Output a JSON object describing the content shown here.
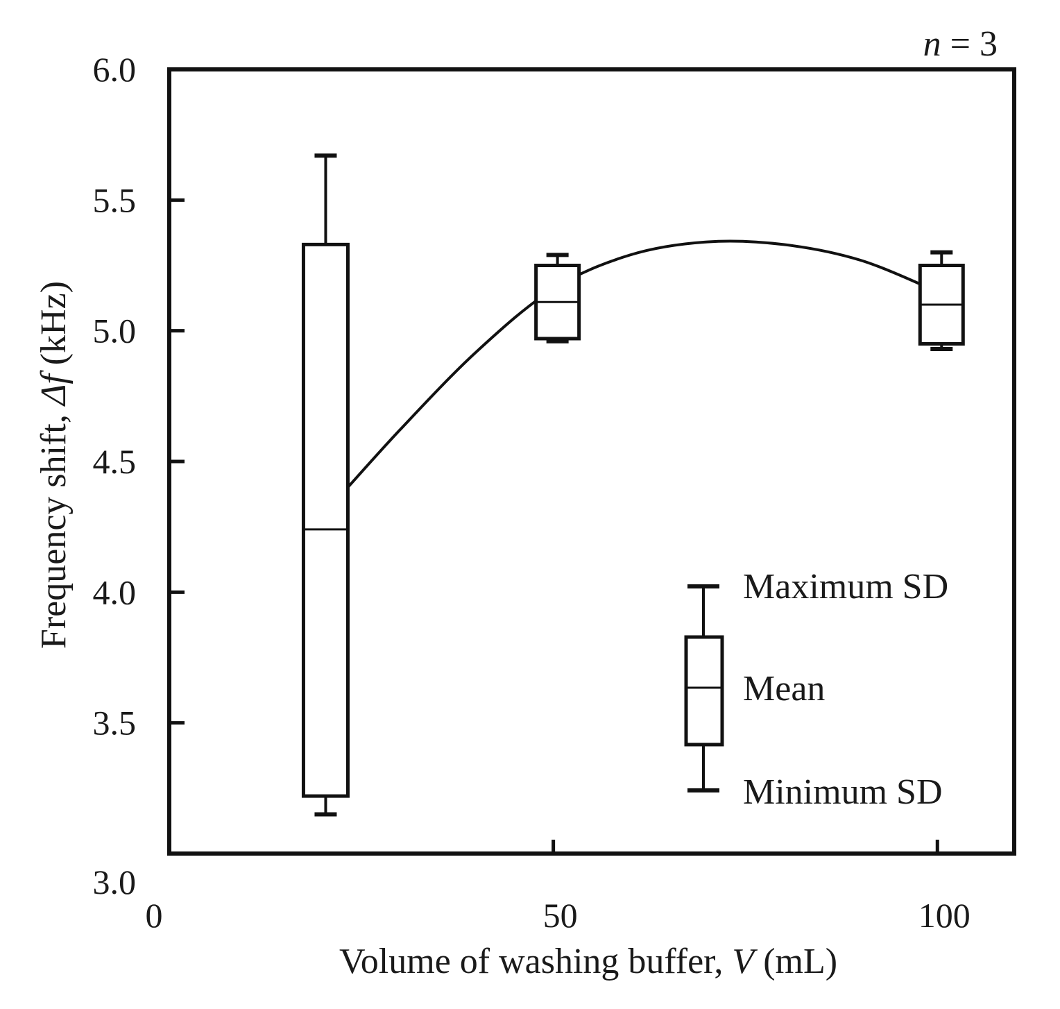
{
  "chart_data": {
    "type": "box",
    "annotation": "n = 3",
    "annotation_parts": {
      "var": "n",
      "rest": " = 3"
    },
    "xlabel": "Volume of washing buffer, V (mL)",
    "xlabel_parts": {
      "before": "Volume of washing buffer, ",
      "var": "V",
      "after": " (mL)"
    },
    "ylabel": "Frequency shift, Δf (kHz)",
    "ylabel_parts": {
      "before": "Frequency shift, ",
      "var": "Δf",
      "after": " (kHz)"
    },
    "xlim": [
      0,
      110
    ],
    "ylim": [
      3.0,
      6.0
    ],
    "xticks": [
      0,
      50,
      100
    ],
    "xtick_labels": [
      "0",
      "50",
      "100"
    ],
    "yticks": [
      3.0,
      3.5,
      4.0,
      4.5,
      5.0,
      5.5,
      6.0
    ],
    "ytick_labels": [
      "3.0",
      "3.5",
      "4.0",
      "4.5",
      "5.0",
      "5.5",
      "6.0"
    ],
    "boxes": [
      {
        "x": 20,
        "mean": 4.24,
        "box_low": 3.22,
        "box_high": 5.33,
        "whisker_low": 3.15,
        "whisker_high": 5.67
      },
      {
        "x": 50,
        "mean": 5.11,
        "box_low": 4.97,
        "box_high": 5.25,
        "whisker_low": 4.96,
        "whisker_high": 5.29
      },
      {
        "x": 100,
        "mean": 5.1,
        "box_low": 4.95,
        "box_high": 5.25,
        "whisker_low": 4.93,
        "whisker_high": 5.3
      }
    ],
    "fit_curve": {
      "points": [
        [
          22,
          4.36
        ],
        [
          30,
          4.62
        ],
        [
          40,
          4.92
        ],
        [
          50,
          5.16
        ],
        [
          60,
          5.29
        ],
        [
          70,
          5.34
        ],
        [
          80,
          5.33
        ],
        [
          90,
          5.27
        ],
        [
          100,
          5.15
        ]
      ]
    },
    "legend": {
      "position": "bottom-right",
      "labels": {
        "max": "Maximum SD",
        "mean": "Mean",
        "min": "Minimum SD"
      }
    }
  }
}
